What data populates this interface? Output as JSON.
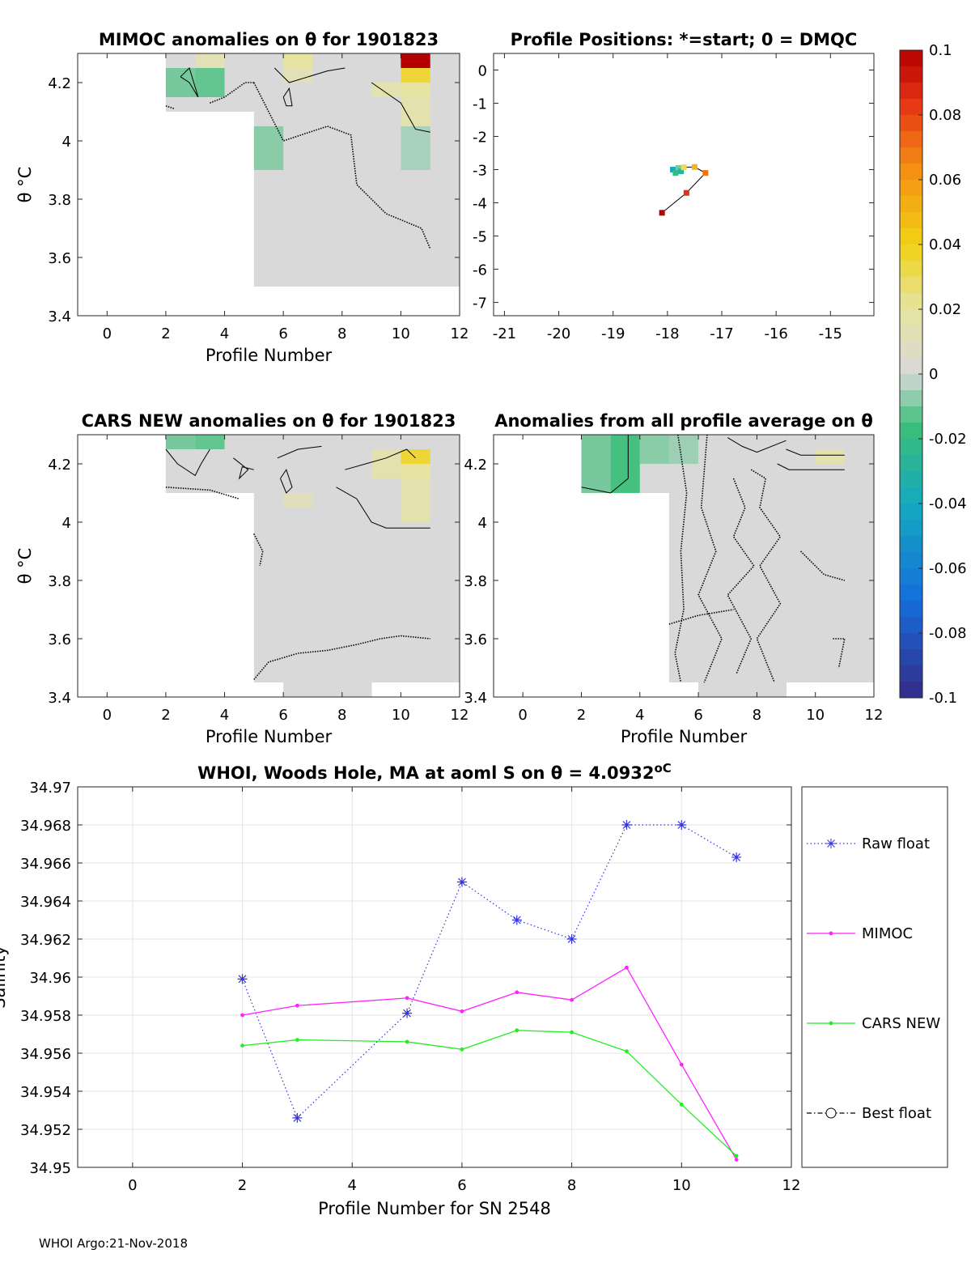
{
  "footer": "WHOI Argo:21-Nov-2018",
  "colors": {
    "raw_float": "#3333dd",
    "mimoc": "#ff22ff",
    "cars_new": "#22ee22",
    "best_float": "#000000",
    "cell_neutral": "#d9d9d9",
    "track_line": "#000000"
  },
  "chart_data": [
    {
      "id": "mimoc",
      "type": "heatmap",
      "title": "MIMOC anomalies on θ  for 1901823",
      "xlabel": "Profile Number",
      "ylabel": "θ °C",
      "xlim": [
        -1,
        12
      ],
      "ylim": [
        3.4,
        4.3
      ],
      "xticks": [
        "0",
        "2",
        "4",
        "6",
        "8",
        "10",
        "12"
      ],
      "yticks": [
        "3.4",
        "3.6",
        "3.8",
        "4",
        "4.2"
      ],
      "profiles": [
        2,
        3,
        4,
        5,
        6,
        7,
        8,
        9,
        10,
        11
      ],
      "theta_min": [
        4.1,
        4.1,
        4.1,
        3.5,
        3.5,
        3.5,
        3.5,
        3.5,
        3.5,
        3.5
      ],
      "highlights": [
        {
          "x": 10.5,
          "y0": 4.25,
          "y1": 4.3,
          "v": 0.1
        },
        {
          "x": 10.5,
          "y0": 4.2,
          "y1": 4.25,
          "v": 0.035
        },
        {
          "x": 10.5,
          "y0": 4.15,
          "y1": 4.2,
          "v": 0.02
        },
        {
          "x": 10.5,
          "y0": 4.05,
          "y1": 4.15,
          "v": 0.015
        },
        {
          "x": 9.5,
          "y0": 4.15,
          "y1": 4.2,
          "v": 0.015
        },
        {
          "x": 6.5,
          "y0": 4.25,
          "y1": 4.3,
          "v": 0.02
        },
        {
          "x": 6.5,
          "y0": 4.2,
          "y1": 4.25,
          "v": 0.012
        },
        {
          "x": 3.5,
          "y0": 4.25,
          "y1": 4.3,
          "v": 0.012
        },
        {
          "x": 2.5,
          "y0": 4.15,
          "y1": 4.25,
          "v": -0.01
        },
        {
          "x": 3.5,
          "y0": 4.15,
          "y1": 4.25,
          "v": -0.012
        },
        {
          "x": 5.5,
          "y0": 3.9,
          "y1": 4.05,
          "v": -0.008
        },
        {
          "x": 10.5,
          "y0": 3.9,
          "y1": 4.05,
          "v": -0.005
        }
      ]
    },
    {
      "id": "positions",
      "type": "scatter",
      "title": "Profile Positions: *=start; 0 = DMQC",
      "xlim": [
        -21.2,
        -14.2
      ],
      "ylim": [
        -7.4,
        0.5
      ],
      "xticks": [
        "-21",
        "-20",
        "-19",
        "-18",
        "-17",
        "-16",
        "-15"
      ],
      "yticks": [
        "0",
        "-1",
        "-2",
        "-3",
        "-4",
        "-5",
        "-6",
        "-7"
      ],
      "track": [
        {
          "lon": -17.9,
          "lat": -3.0,
          "v": -0.04
        },
        {
          "lon": -17.8,
          "lat": -2.95,
          "v": -0.01
        },
        {
          "lon": -17.75,
          "lat": -3.05,
          "v": -0.03
        },
        {
          "lon": -17.85,
          "lat": -3.1,
          "v": -0.02
        },
        {
          "lon": -17.7,
          "lat": -2.93,
          "v": 0.03
        },
        {
          "lon": -17.5,
          "lat": -2.92,
          "v": 0.05
        },
        {
          "lon": -17.3,
          "lat": -3.1,
          "v": 0.07
        },
        {
          "lon": -17.65,
          "lat": -3.7,
          "v": 0.085
        },
        {
          "lon": -18.1,
          "lat": -4.3,
          "v": 0.1
        }
      ]
    },
    {
      "id": "cars",
      "type": "heatmap",
      "title": "CARS NEW anomalies on θ for 1901823",
      "xlabel": "Profile Number",
      "ylabel": "θ °C",
      "xlim": [
        -1,
        12
      ],
      "ylim": [
        3.4,
        4.3
      ],
      "xticks": [
        "0",
        "2",
        "4",
        "6",
        "8",
        "10",
        "12"
      ],
      "yticks": [
        "3.4",
        "3.6",
        "3.8",
        "4",
        "4.2"
      ],
      "profiles": [
        2,
        3,
        4,
        5,
        6,
        7,
        8,
        9,
        10,
        11
      ],
      "theta_min": [
        4.1,
        4.1,
        4.1,
        3.45,
        3.4,
        3.4,
        3.4,
        3.45,
        3.45,
        3.45
      ],
      "highlights": [
        {
          "x": 10.5,
          "y0": 4.2,
          "y1": 4.25,
          "v": 0.035
        },
        {
          "x": 10.5,
          "y0": 4.15,
          "y1": 4.2,
          "v": 0.02
        },
        {
          "x": 10.5,
          "y0": 4.0,
          "y1": 4.15,
          "v": 0.015
        },
        {
          "x": 9.5,
          "y0": 4.15,
          "y1": 4.25,
          "v": 0.015
        },
        {
          "x": 2.5,
          "y0": 4.25,
          "y1": 4.3,
          "v": -0.01
        },
        {
          "x": 3.5,
          "y0": 4.25,
          "y1": 4.3,
          "v": -0.012
        },
        {
          "x": 6.5,
          "y0": 4.05,
          "y1": 4.1,
          "v": 0.01
        }
      ]
    },
    {
      "id": "allprof",
      "type": "heatmap",
      "title": "Anomalies from all profile average on θ",
      "xlabel": "Profile Number",
      "ylabel": "θ °C",
      "xlim": [
        -1,
        12
      ],
      "ylim": [
        3.4,
        4.3
      ],
      "xticks": [
        "0",
        "2",
        "4",
        "6",
        "8",
        "10",
        "12"
      ],
      "yticks": [
        "3.4",
        "3.6",
        "3.8",
        "4",
        "4.2"
      ],
      "profiles": [
        2,
        3,
        4,
        5,
        6,
        7,
        8,
        9,
        10,
        11
      ],
      "theta_min": [
        4.1,
        4.1,
        4.1,
        3.45,
        3.4,
        3.4,
        3.4,
        3.45,
        3.45,
        3.45
      ],
      "highlights": [
        {
          "x": 2.5,
          "y0": 4.1,
          "y1": 4.3,
          "v": -0.01
        },
        {
          "x": 3.5,
          "y0": 4.1,
          "y1": 4.3,
          "v": -0.015
        },
        {
          "x": 4.5,
          "y0": 4.2,
          "y1": 4.3,
          "v": -0.008
        },
        {
          "x": 5.5,
          "y0": 4.2,
          "y1": 4.3,
          "v": -0.006
        },
        {
          "x": 10.5,
          "y0": 4.2,
          "y1": 4.25,
          "v": 0.015
        }
      ]
    },
    {
      "id": "colorbar",
      "type": "heatmap",
      "vmin": -0.1,
      "vmax": 0.1,
      "ticks": [
        "0.1",
        "0.08",
        "0.06",
        "0.04",
        "0.02",
        "0",
        "-0.02",
        "-0.04",
        "-0.06",
        "-0.08",
        "-0.1"
      ]
    },
    {
      "id": "salinity",
      "type": "line",
      "title": "WHOI, Woods Hole, MA at aoml S on θ = 4.0932",
      "title_unit": "oC",
      "xlabel": "Profile Number for SN 2548",
      "ylabel": "Salinity",
      "xlim": [
        -1,
        12
      ],
      "ylim": [
        34.95,
        34.97
      ],
      "xticks": [
        "0",
        "2",
        "4",
        "6",
        "8",
        "10",
        "12"
      ],
      "yticks": [
        "34.95",
        "34.952",
        "34.954",
        "34.956",
        "34.958",
        "34.96",
        "34.962",
        "34.964",
        "34.966",
        "34.968",
        "34.97"
      ],
      "series": [
        {
          "name": "Raw float",
          "x": [
            2,
            3,
            5,
            6,
            7,
            8,
            9,
            10,
            11
          ],
          "values": [
            34.9599,
            34.9526,
            34.9581,
            34.965,
            34.963,
            34.962,
            34.968,
            34.968,
            34.9663
          ]
        },
        {
          "name": "MIMOC",
          "x": [
            2,
            3,
            5,
            6,
            7,
            8,
            9,
            10,
            11
          ],
          "values": [
            34.958,
            34.9585,
            34.9589,
            34.9582,
            34.9592,
            34.9588,
            34.9605,
            34.9554,
            34.9504
          ]
        },
        {
          "name": "CARS NEW",
          "x": [
            2,
            3,
            5,
            6,
            7,
            8,
            9,
            10,
            11
          ],
          "values": [
            34.9564,
            34.9567,
            34.9566,
            34.9562,
            34.9572,
            34.9571,
            34.9561,
            34.9533,
            34.9506
          ]
        },
        {
          "name": "Best float",
          "x": [],
          "values": []
        }
      ]
    }
  ]
}
